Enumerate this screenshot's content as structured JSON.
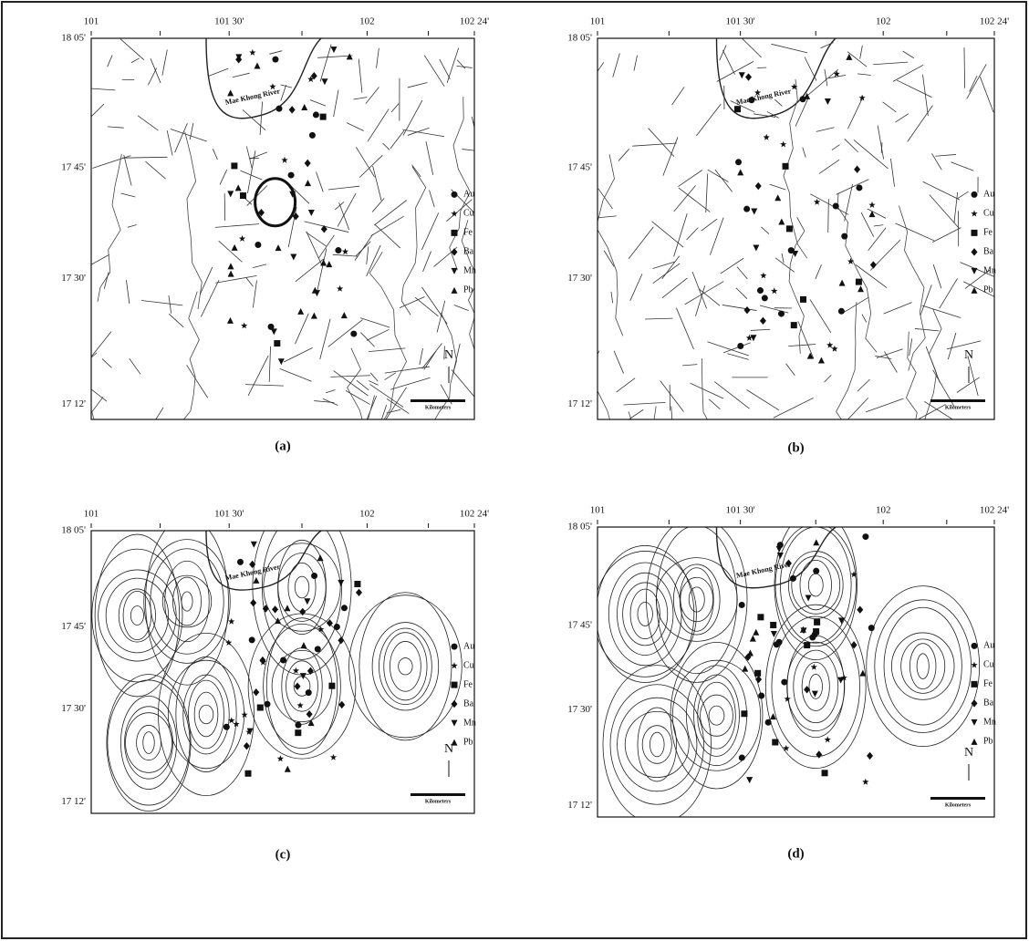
{
  "lon_ticks": [
    "101",
    "101 30'",
    "102",
    "102 24'"
  ],
  "lat_ticks": [
    "18 05'",
    "17 45'",
    "17 30'",
    "17 12'"
  ],
  "legend": [
    "Au",
    "Cu",
    "Fe",
    "Ba",
    "Mn",
    "Pb"
  ],
  "north": "N",
  "scale_label": "Kilometers",
  "river_label": "Mae Khong River",
  "panels": [
    {
      "label": "(a)"
    },
    {
      "label": "(b)"
    },
    {
      "label": "(c)"
    },
    {
      "label": "(d)"
    }
  ]
}
